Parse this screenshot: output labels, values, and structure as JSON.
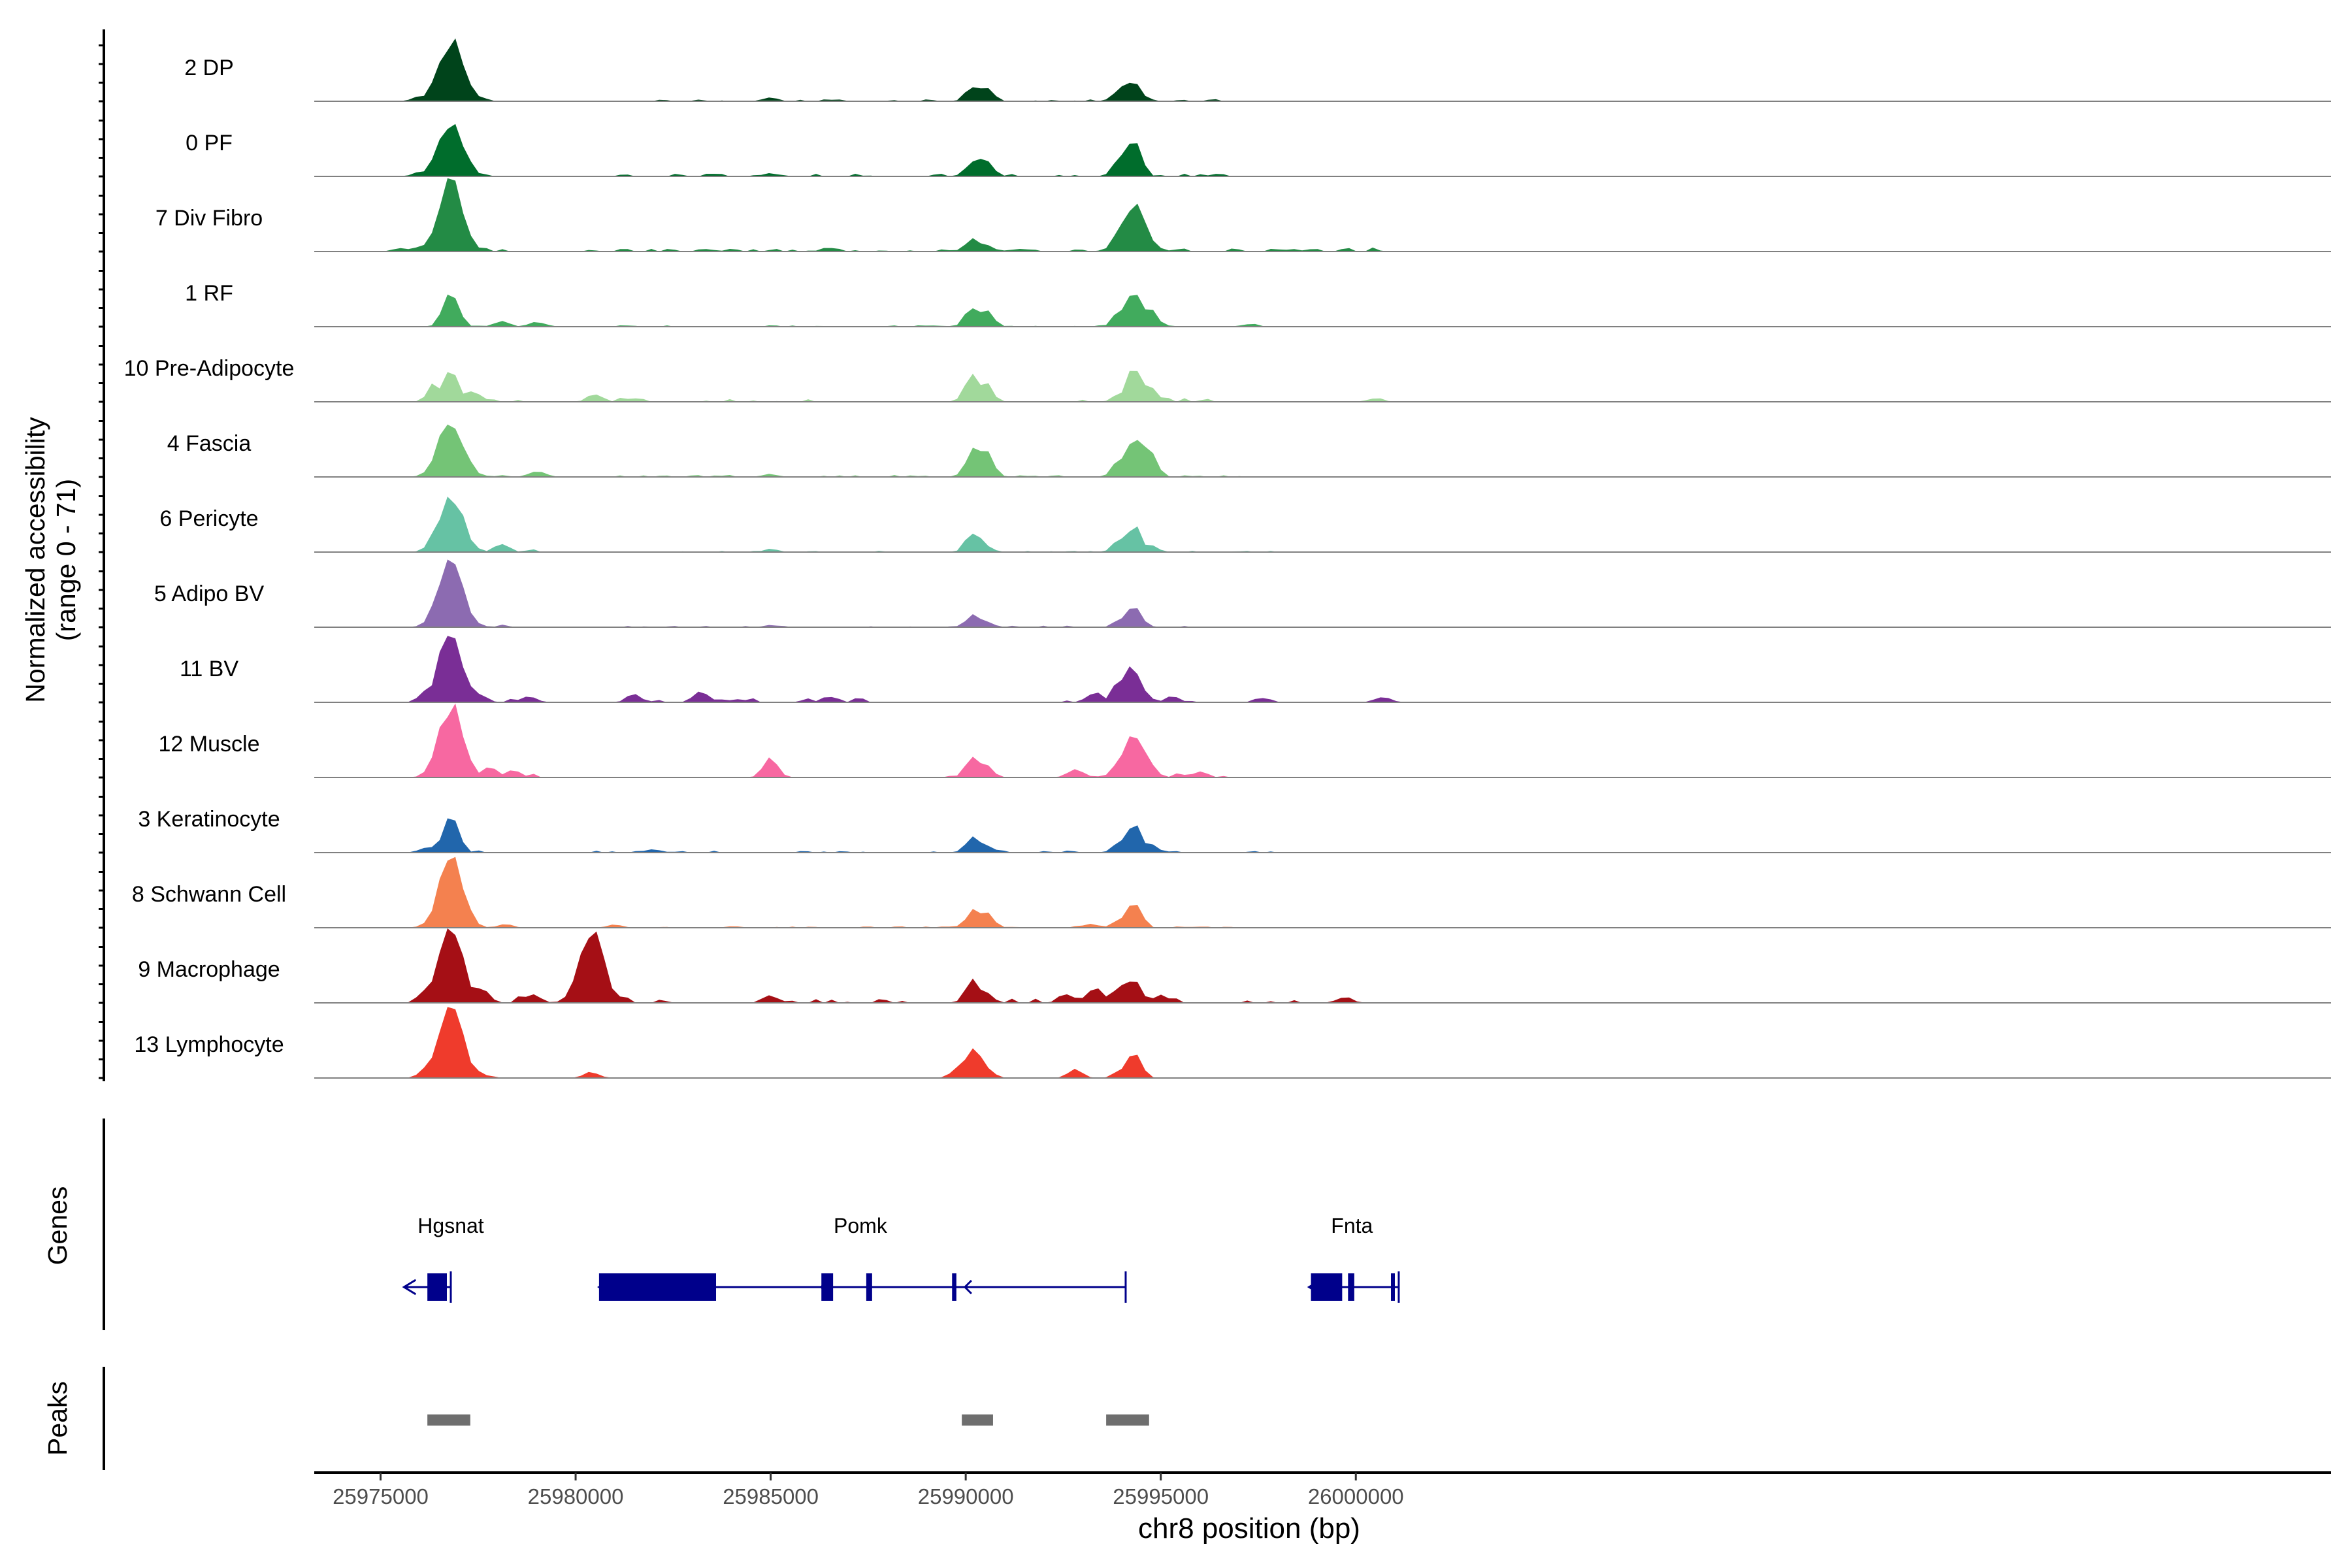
{
  "chart_data": {
    "type": "area",
    "title": "",
    "region": "chr8",
    "xlabel": "chr8 position (bp)",
    "xlim": [
      25973300,
      26025000
    ],
    "x_ticks": [
      25975000,
      25980000,
      25985000,
      25990000,
      25995000,
      26000000
    ],
    "x_tick_labels": [
      "25975000",
      "25980000",
      "25985000",
      "25990000",
      "25995000",
      "26000000"
    ],
    "ylabel_line1": "Normalized accessibility",
    "ylabel_line2": "(range 0 - 71)",
    "ylim": [
      0,
      71
    ],
    "tracks": [
      {
        "name": "2 DP",
        "color": "#00441b",
        "peaks": [
          [
            25976800,
            60
          ],
          [
            25990200,
            16
          ],
          [
            25990500,
            14
          ],
          [
            25994000,
            16
          ],
          [
            25994300,
            22
          ],
          [
            25985000,
            4
          ],
          [
            25976000,
            5
          ],
          [
            25977500,
            5
          ]
        ],
        "noise": [
          [
            25976000,
            25978000,
            3
          ],
          [
            25981000,
            25990000,
            1.5
          ],
          [
            25990800,
            25994000,
            2
          ],
          [
            25994600,
            25997000,
            1.5
          ]
        ]
      },
      {
        "name": "0 PF",
        "color": "#006d2c",
        "peaks": [
          [
            25976800,
            56
          ],
          [
            25990200,
            17
          ],
          [
            25990500,
            19
          ],
          [
            25994000,
            20
          ],
          [
            25994300,
            36
          ],
          [
            25985000,
            3
          ],
          [
            25976000,
            4
          ]
        ],
        "noise": [
          [
            25976000,
            25978000,
            3
          ],
          [
            25981000,
            25990000,
            2
          ],
          [
            25990800,
            25994000,
            2
          ],
          [
            25994600,
            25997000,
            2
          ]
        ]
      },
      {
        "name": "7 Div Fibro",
        "color": "#238b45",
        "peaks": [
          [
            25976800,
            70
          ],
          [
            25990200,
            15
          ],
          [
            25990500,
            8
          ],
          [
            25994000,
            30
          ],
          [
            25994300,
            44
          ],
          [
            25986500,
            4
          ],
          [
            25975500,
            3
          ]
        ],
        "noise": [
          [
            25975500,
            25978500,
            3
          ],
          [
            25980000,
            25990000,
            2
          ],
          [
            25990800,
            25994000,
            2
          ],
          [
            25994600,
            26001300,
            3
          ]
        ]
      },
      {
        "name": "1 RF",
        "color": "#41ab5d",
        "peaks": [
          [
            25976800,
            40
          ],
          [
            25990200,
            22
          ],
          [
            25990500,
            20
          ],
          [
            25994000,
            18
          ],
          [
            25994300,
            36
          ],
          [
            25994700,
            18
          ],
          [
            25978100,
            6
          ],
          [
            25979000,
            5
          ],
          [
            25997300,
            3
          ]
        ],
        "noise": [
          [
            25976000,
            25979500,
            2
          ],
          [
            25981000,
            25990000,
            1
          ],
          [
            25990800,
            25994000,
            1
          ],
          [
            25994800,
            25998000,
            1
          ]
        ]
      },
      {
        "name": "10 Pre-Adipocyte",
        "color": "#a1d99b",
        "peaks": [
          [
            25976800,
            30
          ],
          [
            25976400,
            18
          ],
          [
            25980500,
            8
          ],
          [
            25990200,
            30
          ],
          [
            25990500,
            18
          ],
          [
            25994000,
            10
          ],
          [
            25994300,
            34
          ],
          [
            25994700,
            18
          ],
          [
            26000500,
            4
          ],
          [
            25977400,
            10
          ]
        ],
        "noise": [
          [
            25976000,
            25982000,
            3
          ],
          [
            25983000,
            25986000,
            2
          ],
          [
            25989500,
            25991000,
            3
          ],
          [
            25992800,
            25996500,
            3
          ]
        ]
      },
      {
        "name": "4 Fascia",
        "color": "#74c476",
        "peaks": [
          [
            25976800,
            56
          ],
          [
            25990200,
            30
          ],
          [
            25990500,
            30
          ],
          [
            25994000,
            20
          ],
          [
            25994300,
            40
          ],
          [
            25994700,
            30
          ],
          [
            25979000,
            6
          ],
          [
            25985000,
            3
          ]
        ],
        "noise": [
          [
            25976000,
            25979500,
            2
          ],
          [
            25981000,
            25990000,
            1.5
          ],
          [
            25990800,
            25994000,
            1.5
          ],
          [
            25994800,
            25997500,
            1.5
          ]
        ]
      },
      {
        "name": "6 Pericyte",
        "color": "#66c2a4",
        "peaks": [
          [
            25976800,
            58
          ],
          [
            25990200,
            20
          ],
          [
            25990500,
            6
          ],
          [
            25994000,
            14
          ],
          [
            25994300,
            26
          ],
          [
            25994700,
            8
          ],
          [
            25978100,
            8
          ],
          [
            25985000,
            3
          ]
        ],
        "noise": [
          [
            25976000,
            25979000,
            2
          ],
          [
            25981000,
            25990000,
            1
          ],
          [
            25990800,
            25994000,
            1
          ],
          [
            25994800,
            25998000,
            1
          ]
        ]
      },
      {
        "name": "5 Adipo BV",
        "color": "#8c6bb1",
        "peaks": [
          [
            25976800,
            66
          ],
          [
            25990200,
            12
          ],
          [
            25990500,
            6
          ],
          [
            25994000,
            8
          ],
          [
            25994300,
            24
          ],
          [
            25985000,
            2
          ]
        ],
        "noise": [
          [
            25976000,
            25978500,
            2
          ],
          [
            25981000,
            25990000,
            1
          ],
          [
            25990800,
            25994000,
            1.5
          ],
          [
            25994800,
            25996500,
            1
          ]
        ]
      },
      {
        "name": "11 BV",
        "color": "#7a2e96",
        "peaks": [
          [
            25976800,
            70
          ],
          [
            25976200,
            14
          ],
          [
            25977500,
            10
          ],
          [
            25994000,
            26
          ],
          [
            25994300,
            38
          ],
          [
            25993300,
            10
          ],
          [
            25981500,
            8
          ],
          [
            25983200,
            10
          ],
          [
            25986500,
            6
          ],
          [
            26000700,
            6
          ],
          [
            25997600,
            5
          ],
          [
            25995300,
            6
          ],
          [
            25978800,
            6
          ]
        ],
        "noise": [
          [
            25975800,
            25979500,
            3
          ],
          [
            25981000,
            25987500,
            3
          ],
          [
            25992500,
            25996000,
            3
          ]
        ]
      },
      {
        "name": "12 Muscle",
        "color": "#f768a1",
        "peaks": [
          [
            25976800,
            70
          ],
          [
            25985000,
            20
          ],
          [
            25990200,
            20
          ],
          [
            25990500,
            12
          ],
          [
            25994000,
            10
          ],
          [
            25994300,
            42
          ],
          [
            25994700,
            10
          ],
          [
            25992800,
            8
          ],
          [
            25977800,
            10
          ],
          [
            25978400,
            8
          ],
          [
            25996000,
            6
          ]
        ],
        "noise": [
          [
            25976000,
            25979000,
            3
          ],
          [
            25992500,
            25997000,
            3
          ],
          [
            25989500,
            25991000,
            2
          ]
        ]
      },
      {
        "name": "3 Keratinocyte",
        "color": "#2166ac",
        "peaks": [
          [
            25976800,
            40
          ],
          [
            25990200,
            16
          ],
          [
            25990500,
            8
          ],
          [
            25994000,
            14
          ],
          [
            25994300,
            30
          ],
          [
            25994700,
            10
          ],
          [
            25976200,
            6
          ],
          [
            25982000,
            3
          ]
        ],
        "noise": [
          [
            25976000,
            25978500,
            2
          ],
          [
            25980000,
            25990000,
            1.5
          ],
          [
            25990800,
            25994000,
            1.5
          ],
          [
            25994800,
            25998000,
            1.5
          ]
        ]
      },
      {
        "name": "8 Schwann Cell",
        "color": "#f4814f",
        "peaks": [
          [
            25976800,
            68
          ],
          [
            25990200,
            18
          ],
          [
            25990500,
            18
          ],
          [
            25994000,
            10
          ],
          [
            25994300,
            28
          ],
          [
            25978200,
            4
          ],
          [
            25981000,
            3
          ],
          [
            25993200,
            4
          ]
        ],
        "noise": [
          [
            25976000,
            25979000,
            2
          ],
          [
            25981000,
            25990000,
            1
          ],
          [
            25990800,
            25994000,
            1.5
          ],
          [
            25994800,
            25997000,
            1
          ]
        ]
      },
      {
        "name": "9 Macrophage",
        "color": "#a50f15",
        "peaks": [
          [
            25976800,
            70
          ],
          [
            25980400,
            70
          ],
          [
            25976200,
            16
          ],
          [
            25977600,
            16
          ],
          [
            25990200,
            22
          ],
          [
            25990500,
            10
          ],
          [
            25994000,
            20
          ],
          [
            25994300,
            26
          ],
          [
            25993300,
            16
          ],
          [
            25992600,
            10
          ],
          [
            25995000,
            8
          ],
          [
            25978900,
            10
          ],
          [
            25985000,
            8
          ],
          [
            25999700,
            6
          ]
        ],
        "noise": [
          [
            25975700,
            25982500,
            5
          ],
          [
            25984000,
            25988800,
            3
          ],
          [
            25989500,
            25991800,
            4
          ],
          [
            25992300,
            25995500,
            5
          ],
          [
            25996200,
            26000200,
            2
          ]
        ]
      },
      {
        "name": "13 Lymphocyte",
        "color": "#ef3b2c",
        "peaks": [
          [
            25976800,
            70
          ],
          [
            25990200,
            32
          ],
          [
            25990500,
            10
          ],
          [
            25994000,
            8
          ],
          [
            25994300,
            26
          ],
          [
            25976200,
            10
          ],
          [
            25977400,
            10
          ],
          [
            25980400,
            6
          ],
          [
            25992800,
            8
          ],
          [
            25989800,
            10
          ]
        ],
        "noise": [
          [
            25976000,
            25978300,
            4
          ],
          [
            25989500,
            25990900,
            4
          ],
          [
            25993600,
            25994500,
            4
          ]
        ]
      }
    ],
    "genes_label": "Genes",
    "genes": [
      {
        "name": "Hgsnat",
        "label_x": 25976800,
        "start": 25975600,
        "end": 25976800,
        "strand": "-",
        "exons": [
          [
            25976200,
            25976700
          ]
        ]
      },
      {
        "name": "Pomk",
        "label_x": 25987300,
        "start": 25980600,
        "end": 25994100,
        "strand": "-",
        "exons": [
          [
            25980600,
            25983600
          ],
          [
            25986300,
            25986600
          ],
          [
            25987450,
            25987600
          ],
          [
            25989650,
            25989760
          ]
        ]
      },
      {
        "name": "Fnta",
        "label_x": 25999900,
        "start": 25998800,
        "end": 26001100,
        "strand": "-",
        "exons": [
          [
            25998850,
            25999650
          ],
          [
            25999800,
            25999960
          ],
          [
            26000900,
            26000980
          ]
        ]
      }
    ],
    "peaks_label": "Peaks",
    "peak_regions": [
      [
        25976200,
        25977300
      ],
      [
        25989900,
        25990700
      ],
      [
        25993600,
        25994700
      ]
    ]
  }
}
